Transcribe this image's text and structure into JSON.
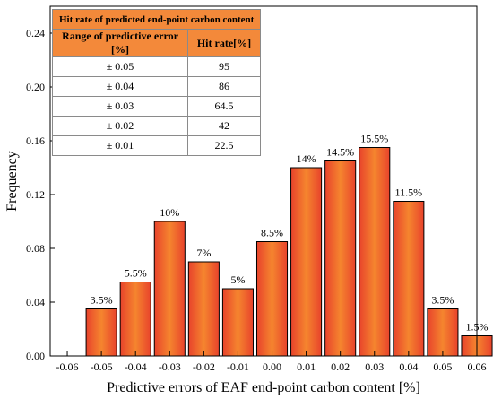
{
  "chart_data": {
    "type": "bar",
    "xlabel": "Predictive errors of EAF end-point carbon content [%]",
    "ylabel": "Frequency",
    "ylim": [
      0,
      0.26
    ],
    "yticks": [
      "0.00",
      "0.04",
      "0.08",
      "0.12",
      "0.16",
      "0.20",
      "0.24"
    ],
    "xticks": [
      "-0.06",
      "-0.05",
      "-0.04",
      "-0.03",
      "-0.02",
      "-0.01",
      "0.00",
      "0.01",
      "0.02",
      "0.03",
      "0.04",
      "0.05",
      "0.06"
    ],
    "xlim": [
      -0.065,
      0.06
    ],
    "bins": [
      {
        "from": -0.055,
        "to": -0.045,
        "value": 0.035,
        "label": "3.5%"
      },
      {
        "from": -0.045,
        "to": -0.035,
        "value": 0.055,
        "label": "5.5%"
      },
      {
        "from": -0.035,
        "to": -0.025,
        "value": 0.1,
        "label": "10%"
      },
      {
        "from": -0.025,
        "to": -0.015,
        "value": 0.07,
        "label": "7%"
      },
      {
        "from": -0.015,
        "to": -0.005,
        "value": 0.05,
        "label": "5%"
      },
      {
        "from": -0.005,
        "to": 0.005,
        "value": 0.085,
        "label": "8.5%"
      },
      {
        "from": 0.005,
        "to": 0.015,
        "value": 0.14,
        "label": "14%"
      },
      {
        "from": 0.015,
        "to": 0.025,
        "value": 0.145,
        "label": "14.5%"
      },
      {
        "from": 0.025,
        "to": 0.035,
        "value": 0.155,
        "label": "15.5%"
      },
      {
        "from": 0.035,
        "to": 0.045,
        "value": 0.115,
        "label": "11.5%"
      },
      {
        "from": 0.045,
        "to": 0.055,
        "value": 0.035,
        "label": "3.5%"
      },
      {
        "from": 0.055,
        "to": 0.065,
        "value": 0.015,
        "label": "1.5%"
      }
    ],
    "colors": {
      "bar_edge": "#e8432c",
      "bar_center": "#f5852e",
      "bar_border": "#000000",
      "table_header": "#f3893a"
    },
    "inset_table": {
      "title": "Hit rate of predicted end-point carbon content",
      "columns": [
        "Range of predictive error [%]",
        "Hit rate[%]"
      ],
      "rows": [
        {
          "range": "± 0.05",
          "rate": "95"
        },
        {
          "range": "± 0.04",
          "rate": "86"
        },
        {
          "range": "± 0.03",
          "rate": "64.5"
        },
        {
          "range": "± 0.02",
          "rate": "42"
        },
        {
          "range": "± 0.01",
          "rate": "22.5"
        }
      ]
    }
  }
}
